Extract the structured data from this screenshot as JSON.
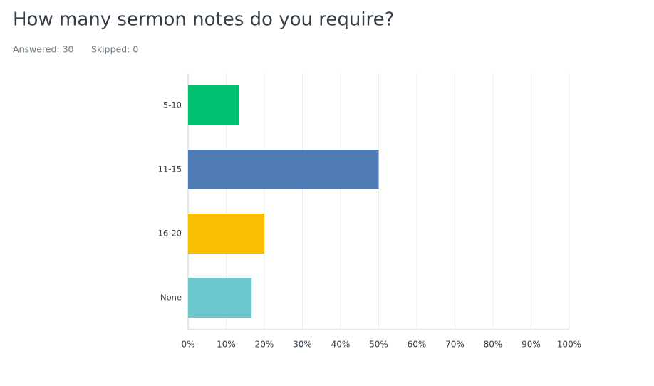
{
  "chart_data": {
    "type": "bar",
    "orientation": "horizontal",
    "title": "How many sermon notes do you require?",
    "answered": "Answered: 30",
    "skipped": "Skipped: 0",
    "categories": [
      "5-10",
      "11-15",
      "16-20",
      "None"
    ],
    "values": [
      13.33,
      50,
      20,
      16.67
    ],
    "colors": [
      "#00bf6f",
      "#507cb6",
      "#f9be00",
      "#6bc8cd"
    ],
    "xlim": [
      0,
      100
    ],
    "xticks": [
      {
        "value": 0,
        "label": "0%"
      },
      {
        "value": 10,
        "label": "10%"
      },
      {
        "value": 20,
        "label": "20%"
      },
      {
        "value": 30,
        "label": "30%"
      },
      {
        "value": 40,
        "label": "40%"
      },
      {
        "value": 50,
        "label": "50%"
      },
      {
        "value": 60,
        "label": "60%"
      },
      {
        "value": 70,
        "label": "70%"
      },
      {
        "value": 80,
        "label": "80%"
      },
      {
        "value": 90,
        "label": "90%"
      },
      {
        "value": 100,
        "label": "100%"
      }
    ],
    "grid": true
  }
}
